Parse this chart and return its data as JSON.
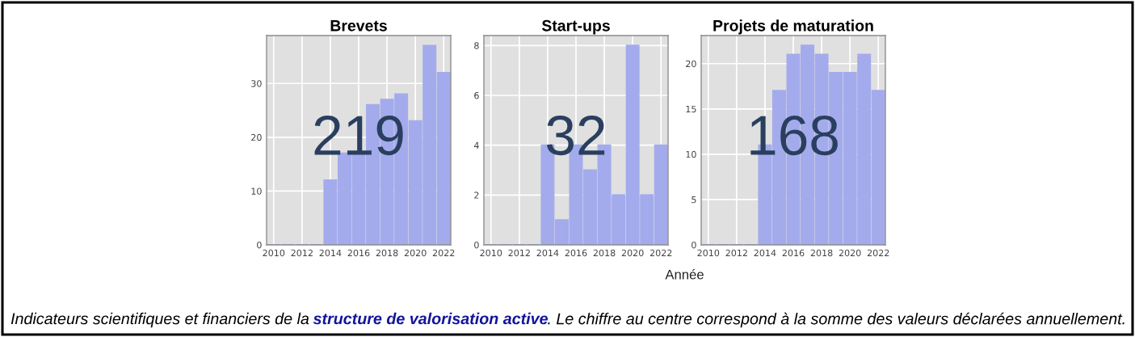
{
  "chart_data": [
    {
      "type": "bar",
      "title": "Brevets",
      "x": [
        2010,
        2011,
        2012,
        2013,
        2014,
        2015,
        2016,
        2017,
        2018,
        2019,
        2020,
        2021,
        2022
      ],
      "values": [
        0,
        0,
        0,
        0,
        12,
        17,
        17,
        26,
        27,
        28,
        23,
        37,
        32
      ],
      "color": "#a4abec",
      "xlim": [
        2009.5,
        2022.5
      ],
      "xticks": [
        2010,
        2012,
        2014,
        2016,
        2018,
        2020,
        2022
      ],
      "ylim": [
        0,
        38.9
      ],
      "yticks": [
        0,
        10,
        20,
        30
      ],
      "grid": true,
      "annotations": [
        "219"
      ]
    },
    {
      "type": "bar",
      "title": "Start-ups",
      "x": [
        2010,
        2011,
        2012,
        2013,
        2014,
        2015,
        2016,
        2017,
        2018,
        2019,
        2020,
        2021,
        2022
      ],
      "values": [
        0,
        0,
        0,
        0,
        4,
        1,
        4,
        3,
        4,
        2,
        8,
        2,
        4
      ],
      "color": "#a4abec",
      "xlim": [
        2009.5,
        2022.5
      ],
      "xticks": [
        2010,
        2012,
        2014,
        2016,
        2018,
        2020,
        2022
      ],
      "ylim": [
        0,
        8.4
      ],
      "yticks": [
        0,
        2,
        4,
        6,
        8
      ],
      "grid": true,
      "xlabel": "Année",
      "annotations": [
        "32"
      ]
    },
    {
      "type": "bar",
      "title": "Projets de maturation",
      "x": [
        2010,
        2011,
        2012,
        2013,
        2014,
        2015,
        2016,
        2017,
        2018,
        2019,
        2020,
        2021,
        2022
      ],
      "values": [
        0,
        0,
        0,
        0,
        11,
        17,
        21,
        22,
        21,
        19,
        19,
        21,
        17
      ],
      "color": "#a4abec",
      "xlim": [
        2009.5,
        2022.5
      ],
      "xticks": [
        2010,
        2012,
        2014,
        2016,
        2018,
        2020,
        2022
      ],
      "ylim": [
        0,
        23.1
      ],
      "yticks": [
        0,
        5,
        10,
        15,
        20
      ],
      "grid": true,
      "annotations": [
        "168",
        "Indicateurs scientifiques et financiers de la",
        "structure de valorisation active",
        ". Le chiffre au centre correspond à la somme des valeurs déclarées annuellement."
      ]
    }
  ]
}
